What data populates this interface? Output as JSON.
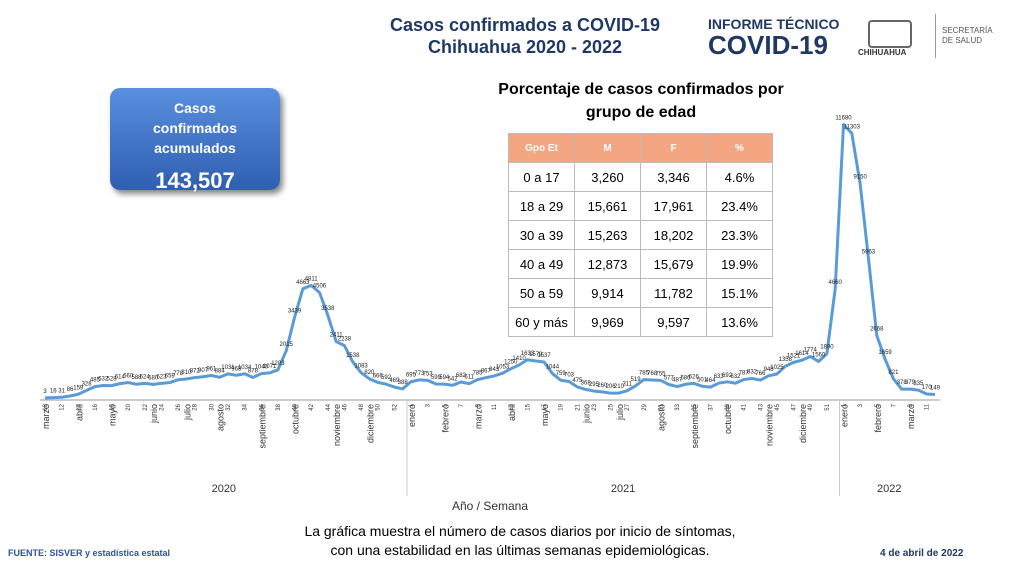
{
  "header": {
    "title": "Casos confirmados a COVID-19",
    "subtitle": "Chihuahua 2020 - 2022",
    "logo_top": "INFORME TÉCNICO",
    "logo_main": "COVID-19",
    "org": "CHIHUAHUA",
    "dept_1": "SECRETARÍA",
    "dept_2": "DE SALUD"
  },
  "kpi": {
    "label": "Casos confirmados acumulados",
    "value": "143,507"
  },
  "table": {
    "title": "Porcentaje de casos confirmados por grupo de edad",
    "columns": [
      "Gpo Et",
      "M",
      "F",
      "%"
    ],
    "rows": [
      [
        "0 a 17",
        "3,260",
        "3,346",
        "4.6%"
      ],
      [
        "18 a 29",
        "15,661",
        "17,961",
        "23.4%"
      ],
      [
        "30 a 39",
        "15,263",
        "18,202",
        "23.3%"
      ],
      [
        "40 a 49",
        "12,873",
        "15,679",
        "19.9%"
      ],
      [
        "50 a 59",
        "9,914",
        "11,782",
        "15.1%"
      ],
      [
        "60 y más",
        "9,969",
        "9,597",
        "13.6%"
      ]
    ]
  },
  "chart_data": {
    "type": "line",
    "x_label": "Año / Semana",
    "color": "#5b9bd5",
    "ylim": [
      0,
      12000
    ],
    "categories": [
      "10",
      null,
      "12",
      null,
      "14",
      null,
      "16",
      null,
      "18",
      null,
      "20",
      null,
      "22",
      null,
      "24",
      null,
      "26",
      null,
      "28",
      null,
      "30",
      null,
      "32",
      null,
      "34",
      null,
      "36",
      null,
      "38",
      null,
      "40",
      null,
      "42",
      null,
      "44",
      null,
      "46",
      null,
      "48",
      null,
      "50",
      null,
      "52",
      null,
      "1",
      null,
      "3",
      null,
      "5",
      null,
      "7",
      null,
      "9",
      null,
      "11",
      null,
      "13",
      null,
      "15",
      null,
      "17",
      null,
      "19",
      null,
      "21",
      null,
      "23",
      null,
      "25",
      null,
      "27",
      null,
      "29",
      null,
      "31",
      null,
      "33",
      null,
      "35",
      null,
      "37",
      null,
      "39",
      null,
      "41",
      null,
      "43",
      null,
      "45",
      null,
      "47",
      null,
      "49",
      null,
      "51",
      null,
      "1",
      null,
      "3",
      null,
      "5",
      null,
      "7",
      null,
      "9",
      null,
      "11",
      null
    ],
    "values": [
      3,
      16,
      31,
      86,
      159,
      328,
      485,
      532,
      528,
      614,
      660,
      588,
      624,
      580,
      623,
      659,
      778,
      810,
      872,
      907,
      961,
      884,
      1031,
      968,
      1034,
      878,
      1040,
      1071,
      1203,
      2015,
      3439,
      4663,
      4811,
      4506,
      3538,
      2411,
      2238,
      1538,
      1083,
      820,
      666,
      592,
      469,
      388,
      695,
      773,
      753,
      599,
      594,
      542,
      682,
      611,
      785,
      867,
      943,
      1053,
      1250,
      1410,
      1633,
      1579,
      1537,
      1044,
      759,
      703,
      475,
      368,
      295,
      260,
      206,
      210,
      311,
      519,
      785,
      768,
      755,
      577,
      487,
      586,
      626,
      501,
      464,
      633,
      692,
      632,
      787,
      832,
      766,
      948,
      1025,
      1358,
      1521,
      1614,
      1774,
      1560,
      1890,
      4660,
      11680,
      11303,
      9150,
      5963,
      2668,
      1659,
      821,
      378,
      379,
      335,
      170,
      149
    ],
    "periods": [
      {
        "year": "2020",
        "months": [
          "marzo",
          "abril",
          "mayo",
          "junio",
          "julio",
          "agosto",
          "septiembre",
          "octubre",
          "noviembre",
          "diciembre"
        ]
      },
      {
        "year": "2021",
        "months": [
          "enero",
          "febrero",
          "marzo",
          "abril",
          "mayo",
          "junio",
          "julio",
          "agosto",
          "septiembre",
          "octubre",
          "noviembre",
          "diciembre"
        ]
      },
      {
        "year": "2022",
        "months": [
          "enero",
          "febrero",
          "marzo"
        ]
      }
    ]
  },
  "footer": {
    "source": "FUENTE: SISVER y estadística estatal",
    "note_1": "La gráfica muestra el número de casos diarios por inicio de síntomas,",
    "note_2": "con una estabilidad en las últimas semanas epidemiológicas.",
    "date": "4 de abril de 2022"
  }
}
